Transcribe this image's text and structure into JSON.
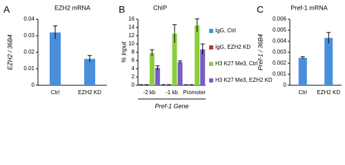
{
  "chart_data": [
    {
      "type": "bar",
      "panel_label": "A",
      "title": "EZH2 mRNA",
      "ylabel": "EZH2 / 36B4",
      "categories": [
        "Ctrl",
        "EZH2 KD"
      ],
      "values": [
        0.032,
        0.016
      ],
      "errors": [
        0.004,
        0.002
      ],
      "color": "#4a8fdc",
      "ylim": [
        0,
        0.04
      ],
      "yticks": [
        0,
        0.01,
        0.02,
        0.03,
        0.04
      ]
    },
    {
      "type": "grouped_bar",
      "panel_label": "B",
      "title": "ChIP",
      "ylabel": "% Input",
      "xlabel": "Pref-1 Gene",
      "categories": [
        "-2 kb",
        "-1 kb",
        "Promoter"
      ],
      "series": [
        {
          "name": "IgG, Ctrl",
          "color": "#4a8fdc",
          "values": [
            0.1,
            0.1,
            0.1
          ],
          "errors": [
            0.05,
            0.05,
            0.05
          ]
        },
        {
          "name": "IgG, EZH2 KD",
          "color": "#c0392b",
          "values": [
            0.1,
            0.1,
            0.1
          ],
          "errors": [
            0.05,
            0.05,
            0.05
          ]
        },
        {
          "name": "H3 K27 Me3, Ctrl",
          "color": "#8ccf3c",
          "values": [
            7.8,
            12.5,
            14.5
          ],
          "errors": [
            0.8,
            2.2,
            1.6
          ]
        },
        {
          "name": "H3 K27 Me3, EZH2 KD",
          "color": "#7b5cc4",
          "values": [
            4.2,
            5.6,
            8.7
          ],
          "errors": [
            0.5,
            0.3,
            1.3
          ]
        }
      ],
      "ylim": [
        0,
        16
      ],
      "yticks": [
        0,
        2,
        4,
        6,
        8,
        10,
        12,
        14,
        16
      ]
    },
    {
      "type": "bar",
      "panel_label": "C",
      "title": "Pref-1 mRNA",
      "ylabel": "Pref-1 / 36B4",
      "categories": [
        "Ctrl",
        "EZH2 KD"
      ],
      "values": [
        0.0025,
        0.0043
      ],
      "errors": [
        0.0001,
        0.0005
      ],
      "color": "#4a8fdc",
      "ylim": [
        0,
        0.006
      ],
      "yticks": [
        0,
        0.001,
        0.002,
        0.003,
        0.004,
        0.005,
        0.006
      ]
    }
  ]
}
